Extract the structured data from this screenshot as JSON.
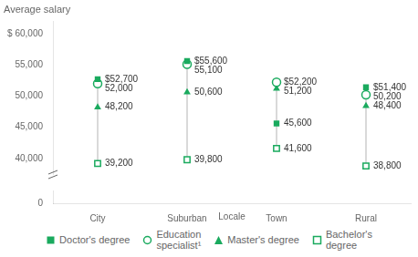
{
  "chart_data": [
    {
      "type": "scatter",
      "title": "Average salary",
      "categories": [
        "City",
        "Suburban",
        "Town",
        "Rural"
      ],
      "series": [
        {
          "name": "Doctor's degree",
          "color": "#1aaa5e",
          "marker": "square",
          "values": [
            52700,
            55600,
            45600,
            51400
          ],
          "value_labels": [
            "$52,700",
            "$55,600",
            "45,600",
            "$51,400"
          ]
        },
        {
          "name": "Education\nspecialist¹",
          "color": "#1aaa5e",
          "marker": "open_circle",
          "values": [
            52000,
            55100,
            52200,
            50200
          ],
          "value_labels": [
            "52,000",
            "55,100",
            "$52,200",
            "50,200"
          ]
        },
        {
          "name": "Master's degree",
          "color": "#1aaa5e",
          "marker": "triangle",
          "values": [
            48200,
            50600,
            51200,
            48400
          ],
          "value_labels": [
            "48,200",
            "50,600",
            "51,200",
            "48,400"
          ]
        },
        {
          "name": "Bachelor's\ndegree",
          "color": "#1aaa5e",
          "marker": "open_square",
          "values": [
            39200,
            39800,
            41600,
            38800
          ],
          "value_labels": [
            "39,200",
            "39,800",
            "41,600",
            "38,800"
          ]
        }
      ],
      "ylim": [
        37500,
        62000
      ],
      "yticks": [
        {
          "value": 40000,
          "label": "40,000"
        },
        {
          "value": 45000,
          "label": "45,000"
        },
        {
          "value": 50000,
          "label": "50,000"
        },
        {
          "value": 55000,
          "label": "55,000"
        },
        {
          "value": 60000,
          "label": "$ 60,000"
        }
      ],
      "grid": false,
      "data_labels": true,
      "tick_labels": "y",
      "legend": "bottom"
    },
    {
      "type": "scatter",
      "categories": [
        "City",
        "Suburban",
        "Town",
        "Rural"
      ],
      "x_label": "Locale",
      "ylim": [
        0,
        5000
      ],
      "yticks": [
        0
      ],
      "grid": false
    }
  ]
}
